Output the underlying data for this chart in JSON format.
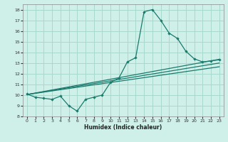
{
  "xlabel": "Humidex (Indice chaleur)",
  "xlim": [
    -0.5,
    23.5
  ],
  "ylim": [
    8,
    18.5
  ],
  "yticks": [
    8,
    9,
    10,
    11,
    12,
    13,
    14,
    15,
    16,
    17,
    18
  ],
  "xticks": [
    0,
    1,
    2,
    3,
    4,
    5,
    6,
    7,
    8,
    9,
    10,
    11,
    12,
    13,
    14,
    15,
    16,
    17,
    18,
    19,
    20,
    21,
    22,
    23
  ],
  "bg_color": "#cef0e8",
  "grid_color": "#a8d8cc",
  "line_color": "#1a7a6e",
  "line1_x": [
    0,
    1,
    2,
    3,
    4,
    5,
    6,
    7,
    8,
    9,
    10,
    11,
    12,
    13,
    14,
    15,
    16,
    17,
    18,
    19,
    20,
    21,
    22,
    23
  ],
  "line1_y": [
    10.1,
    9.8,
    9.7,
    9.6,
    9.9,
    9.0,
    8.5,
    9.6,
    9.8,
    10.0,
    11.2,
    11.6,
    13.1,
    13.5,
    17.8,
    18.0,
    17.0,
    15.8,
    15.3,
    14.1,
    13.4,
    13.1,
    13.2,
    13.3
  ],
  "line2_x": [
    0,
    23
  ],
  "line2_y": [
    10.05,
    13.35
  ],
  "line3_x": [
    0,
    23
  ],
  "line3_y": [
    10.05,
    13.0
  ],
  "line4_x": [
    0,
    23
  ],
  "line4_y": [
    10.05,
    12.65
  ]
}
